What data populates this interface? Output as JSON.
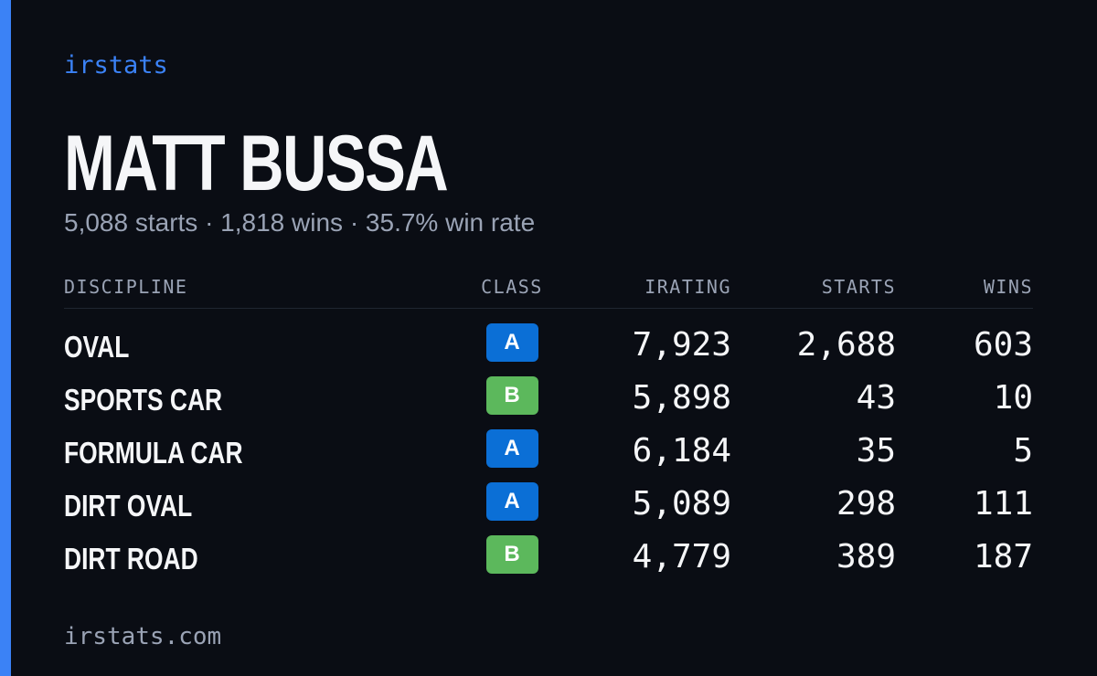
{
  "brand": "irstats",
  "driver": {
    "name": "MATT BUSSA",
    "summary": "5,088 starts · 1,818 wins · 35.7% win rate"
  },
  "table": {
    "headers": [
      "DISCIPLINE",
      "CLASS",
      "IRATING",
      "STARTS",
      "WINS"
    ],
    "rows": [
      {
        "discipline": "OVAL",
        "class": "A",
        "class_color": "#0b6fd6",
        "irating": "7,923",
        "starts": "2,688",
        "wins": "603"
      },
      {
        "discipline": "SPORTS CAR",
        "class": "B",
        "class_color": "#5cb85c",
        "irating": "5,898",
        "starts": "43",
        "wins": "10"
      },
      {
        "discipline": "FORMULA CAR",
        "class": "A",
        "class_color": "#0b6fd6",
        "irating": "6,184",
        "starts": "35",
        "wins": "5"
      },
      {
        "discipline": "DIRT OVAL",
        "class": "A",
        "class_color": "#0b6fd6",
        "irating": "5,089",
        "starts": "298",
        "wins": "111"
      },
      {
        "discipline": "DIRT ROAD",
        "class": "B",
        "class_color": "#5cb85c",
        "irating": "4,779",
        "starts": "389",
        "wins": "187"
      }
    ]
  },
  "footer": "irstats.com"
}
